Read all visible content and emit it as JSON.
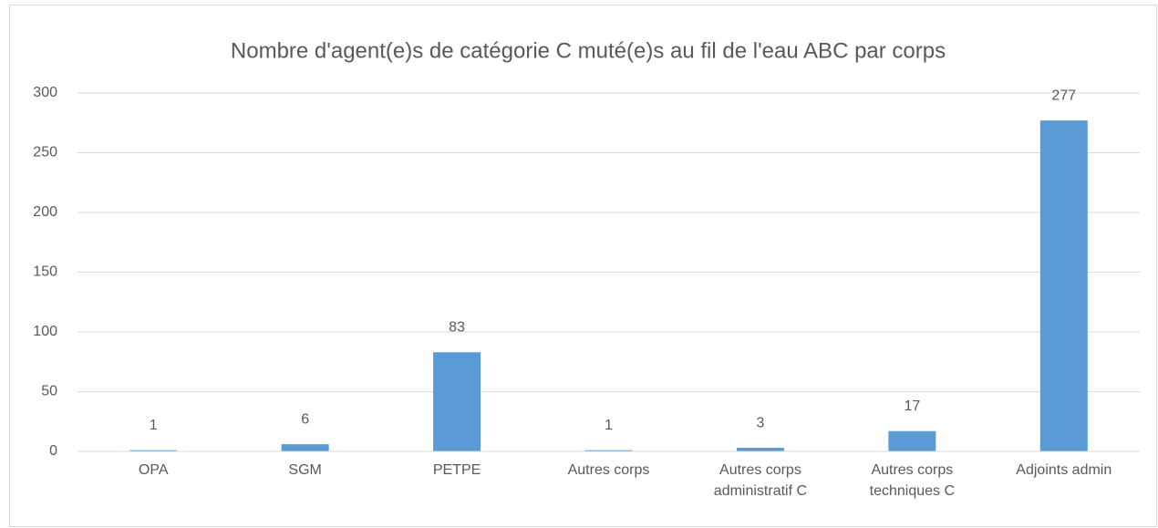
{
  "chart_data": {
    "type": "bar",
    "title": "Nombre d'agent(e)s de catégorie C muté(e)s au fil de l'eau ABC par corps",
    "categories": [
      "OPA",
      "SGM",
      "PETPE",
      "Autres corps",
      "Autres corps administratif C",
      "Autres corps techniques C",
      "Adjoints admin"
    ],
    "values": [
      1,
      6,
      83,
      1,
      3,
      17,
      277
    ],
    "color": "#5b9bd5",
    "ylim": [
      0,
      300
    ],
    "yticks": [
      0,
      50,
      100,
      150,
      200,
      250,
      300
    ],
    "grid": true
  }
}
